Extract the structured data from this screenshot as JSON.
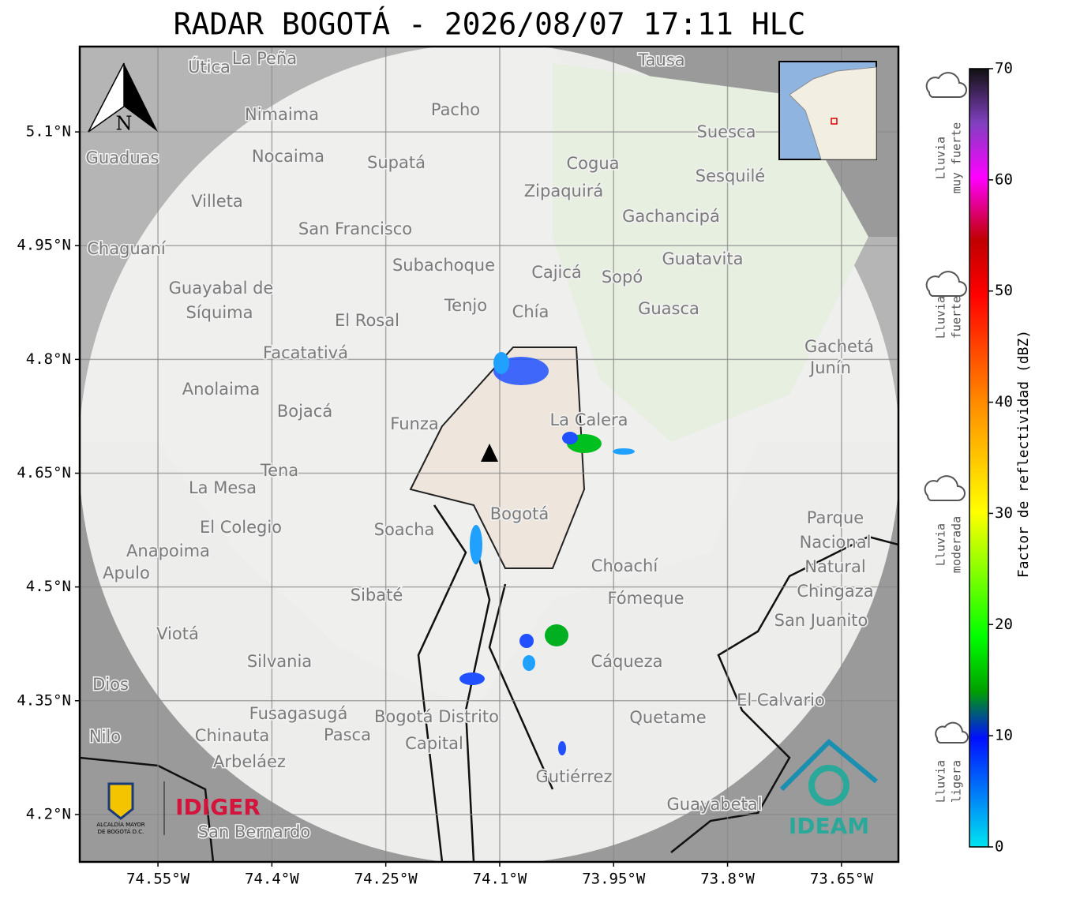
{
  "title": "RADAR BOGOTÁ - 2026/08/07 17:11 HLC",
  "map": {
    "lonlim": [
      -74.653,
      -73.575
    ],
    "latlim": [
      4.1375,
      5.2125
    ],
    "lonticks": [
      {
        "value": -74.55,
        "label": "74.55°W"
      },
      {
        "value": -74.4,
        "label": "74.4°W"
      },
      {
        "value": -74.25,
        "label": "74.25°W"
      },
      {
        "value": -74.1,
        "label": "74.1°W"
      },
      {
        "value": -73.95,
        "label": "73.95°W"
      },
      {
        "value": -73.8,
        "label": "73.8°W"
      },
      {
        "value": -73.65,
        "label": "73.65°W"
      }
    ],
    "latticks": [
      {
        "value": 5.1,
        "label": "5.1°N"
      },
      {
        "value": 4.95,
        "label": "4.95°N"
      },
      {
        "value": 4.8,
        "label": "4.8°N"
      },
      {
        "value": 4.65,
        "label": "4.65°N"
      },
      {
        "value": 4.5,
        "label": "4.5°N"
      },
      {
        "value": 4.35,
        "label": "4.35°N"
      },
      {
        "value": 4.2,
        "label": "4.2°N"
      }
    ],
    "north": "N",
    "places": [
      "La Peña",
      "Útica",
      "Tausa",
      "Pacho",
      "Nimaima",
      "Suesca",
      "Guaduas",
      "Nocaima",
      "Supatá",
      "Cogua",
      "Sesquilé",
      "Zipaquirá",
      "Villeta",
      "Gachancipá",
      "San Francisco",
      "Chaguaní",
      "Guatavita",
      "Subachoque",
      "Cajicá",
      "Sopó",
      "Guayabal de",
      "Síquima",
      "Tenjo",
      "Chía",
      "Guasca",
      "El Rosal",
      "Facatativá",
      "Gachetá",
      "Junín",
      "Anolaima",
      "Bojacá",
      "Funza",
      "La Calera",
      "Tena",
      "La Mesa",
      "Bogotá",
      "Parque",
      "El Colegio",
      "Soacha",
      "Nacional",
      "Anapoima",
      "Apulo",
      "Choachí",
      "Natural",
      "Chingaza",
      "Sibaté",
      "Fómeque",
      "San Juanito",
      "Viotá",
      "Silvania",
      "Cáqueza",
      "Dios",
      "El Calvario",
      "Fusagasugá",
      "Bogotá Distrito",
      "Quetame",
      "Nilo",
      "Chinauta",
      "Pasca",
      "Capital",
      "Arbeláez",
      "Gutiérrez",
      "Guayabetal",
      "San Bernardo"
    ]
  },
  "colorbar": {
    "label": "Factor de reflectividad (dBZ)",
    "lim": [
      0,
      70
    ],
    "ticks": [
      0,
      10,
      20,
      30,
      40,
      50,
      60,
      70
    ],
    "classes": [
      [
        "Lluvia",
        "muy fuerte"
      ],
      [
        "Lluvia",
        "fuerte"
      ],
      [
        "Lluvia",
        "moderada"
      ],
      [
        "Lluvia",
        "ligera"
      ]
    ]
  },
  "logos": {
    "alcaldia": [
      "ALCALDÍA MAYOR",
      "DE BOGOTÁ D.C."
    ],
    "idiger": "IDIGER",
    "ideam": "IDEAM"
  }
}
